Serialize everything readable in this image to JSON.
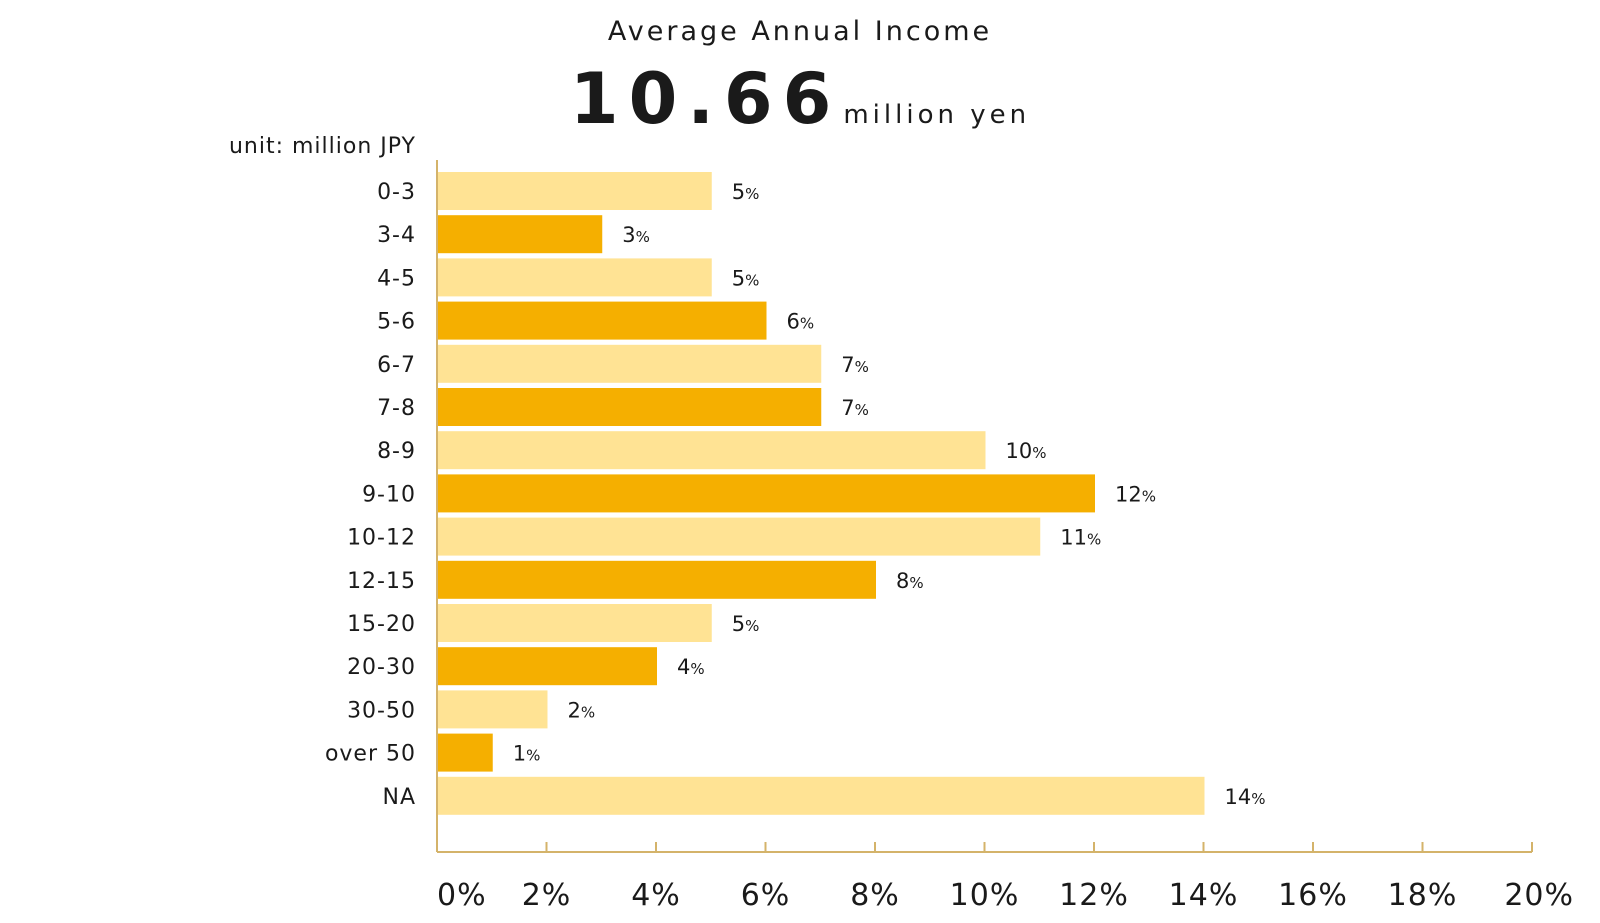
{
  "header": {
    "title": "Average Annual Income",
    "value": "10.66",
    "value_unit": "million yen"
  },
  "chart_data": {
    "type": "bar",
    "orientation": "horizontal",
    "unit_label": "unit: million JPY",
    "categories": [
      "0-3",
      "3-4",
      "4-5",
      "5-6",
      "6-7",
      "7-8",
      "8-9",
      "9-10",
      "10-12",
      "12-15",
      "15-20",
      "20-30",
      "30-50",
      "over 50",
      "NA"
    ],
    "values": [
      5,
      3,
      5,
      6,
      7,
      7,
      10,
      12,
      11,
      8,
      5,
      4,
      2,
      1,
      14
    ],
    "value_labels": [
      "5",
      "3",
      "5",
      "6",
      "7",
      "7",
      "10",
      "12",
      "11",
      "8",
      "5",
      "4",
      "2",
      "1",
      "14"
    ],
    "value_suffix": "%",
    "xlim": [
      0,
      20
    ],
    "xticks": [
      "0%",
      "2%",
      "4%",
      "6%",
      "8%",
      "10%",
      "12%",
      "14%",
      "16%",
      "18%",
      "20%"
    ],
    "colors": {
      "light": "#FFE394",
      "dark": "#F5AF00",
      "axis": "#D4B36A"
    },
    "grid": false
  }
}
